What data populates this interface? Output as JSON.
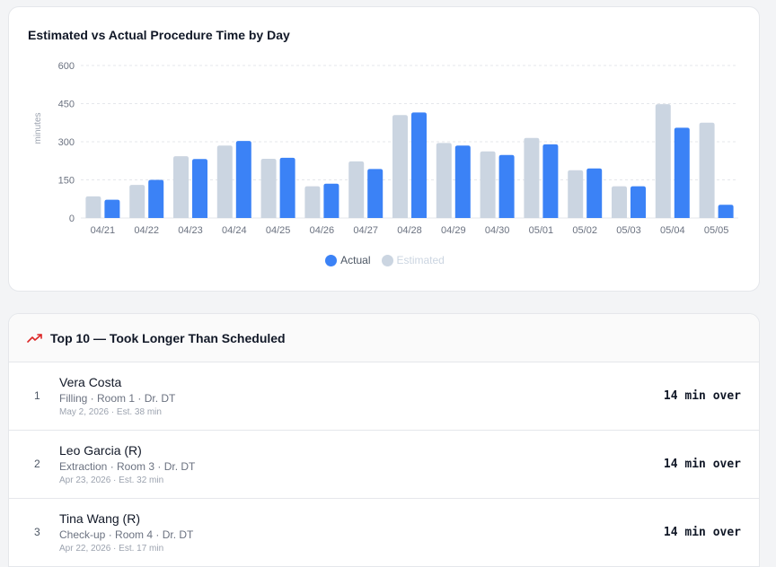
{
  "chart_card": {
    "title": "Estimated vs Actual Procedure Time by Day"
  },
  "chart_data": {
    "type": "bar",
    "title": "Estimated vs Actual Procedure Time by Day",
    "xlabel": "",
    "ylabel": "minutes",
    "ylim": [
      0,
      600
    ],
    "yticks": [
      0,
      150,
      300,
      450,
      600
    ],
    "grid": true,
    "legend_position": "bottom",
    "categories": [
      "04/21",
      "04/22",
      "04/23",
      "04/24",
      "04/25",
      "04/26",
      "04/27",
      "04/28",
      "04/29",
      "04/30",
      "05/01",
      "05/02",
      "05/03",
      "05/04",
      "05/05"
    ],
    "series": [
      {
        "name": "Estimated",
        "color": "#cbd5e1",
        "values": [
          85,
          130,
          243,
          285,
          233,
          125,
          223,
          405,
          295,
          262,
          315,
          188,
          125,
          448,
          375
        ]
      },
      {
        "name": "Actual",
        "color": "#3b82f6",
        "values": [
          72,
          150,
          232,
          303,
          237,
          135,
          193,
          415,
          285,
          248,
          290,
          195,
          125,
          355,
          52
        ]
      }
    ]
  },
  "legend": {
    "actual_label": "Actual",
    "estimated_label": "Estimated"
  },
  "top_list": {
    "title": "Top 10 — Took Longer Than Scheduled",
    "icon": "trending-up-icon",
    "accent_color": "#dc2626",
    "rows": [
      {
        "rank": "1",
        "name": "Vera Costa",
        "details": "Filling · Room 1 · Dr. DT",
        "meta": "May 2, 2026 · Est. 38 min",
        "over": "14 min over"
      },
      {
        "rank": "2",
        "name": "Leo Garcia (R)",
        "details": "Extraction · Room 3 · Dr. DT",
        "meta": "Apr 23, 2026 · Est. 32 min",
        "over": "14 min over"
      },
      {
        "rank": "3",
        "name": "Tina Wang (R)",
        "details": "Check-up · Room 4 · Dr. DT",
        "meta": "Apr 22, 2026 · Est. 17 min",
        "over": "14 min over"
      }
    ]
  }
}
